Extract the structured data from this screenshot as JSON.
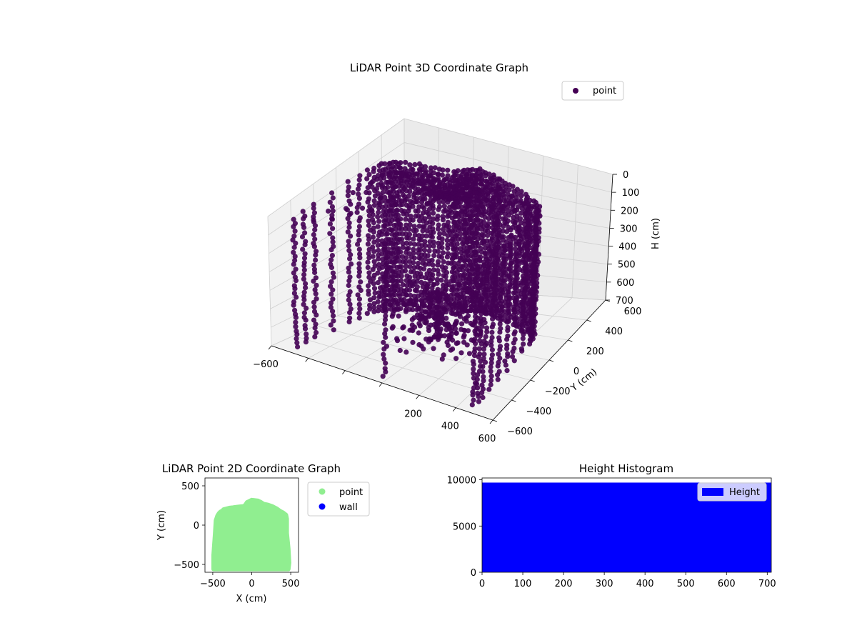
{
  "chart_data": [
    {
      "type": "scatter",
      "projection": "3d",
      "title": "LiDAR Point 3D Coordinate Graph",
      "xlabel": "",
      "ylabel": "Y (cm)",
      "zlabel": "H (cm)",
      "xlim": [
        -600,
        600
      ],
      "ylim": [
        -600,
        600
      ],
      "zlim": [
        700,
        0
      ],
      "z_inverted": true,
      "xticks": [
        "−600",
        "",
        "",
        "",
        "200",
        "400",
        "600"
      ],
      "yticks": [
        "−600",
        "−400",
        "−200",
        "0",
        "200",
        "400",
        "600"
      ],
      "zticks": [
        "0",
        "100",
        "200",
        "300",
        "400",
        "500",
        "600",
        "700"
      ],
      "grid": true,
      "legend": {
        "placement": "top-right",
        "entries": [
          "point"
        ]
      },
      "series": [
        {
          "name": "point",
          "color": "#440154",
          "description_of_shape": "dense point cloud of a room scanned from the center; x from about −500 to 500, y from about −550 to 320, heights 0 to 700"
        }
      ]
    },
    {
      "type": "scatter",
      "title": "LiDAR Point 2D Coordinate Graph",
      "xlabel": "X (cm)",
      "ylabel": "Y (cm)",
      "xlim": [
        -600,
        600
      ],
      "ylim": [
        -600,
        600
      ],
      "xticks": [
        "−500",
        "0",
        "500"
      ],
      "yticks": [
        "−500",
        "0",
        "500"
      ],
      "legend": {
        "placement": "outside-right",
        "entries": [
          "point",
          "wall"
        ]
      },
      "series": [
        {
          "name": "point",
          "color": "#90ee90",
          "outline": [
            [
              -490,
              -560
            ],
            [
              -490,
              -380
            ],
            [
              -470,
              -100
            ],
            [
              -460,
              60
            ],
            [
              -440,
              120
            ],
            [
              -420,
              150
            ],
            [
              -400,
              170
            ],
            [
              -380,
              180
            ],
            [
              -360,
              200
            ],
            [
              -320,
              210
            ],
            [
              -280,
              220
            ],
            [
              -240,
              225
            ],
            [
              -200,
              230
            ],
            [
              -150,
              235
            ],
            [
              -100,
              240
            ],
            [
              -80,
              260
            ],
            [
              -60,
              290
            ],
            [
              -40,
              300
            ],
            [
              -20,
              310
            ],
            [
              0,
              320
            ],
            [
              40,
              315
            ],
            [
              80,
              310
            ],
            [
              120,
              290
            ],
            [
              150,
              270
            ],
            [
              200,
              260
            ],
            [
              260,
              240
            ],
            [
              320,
              210
            ],
            [
              360,
              180
            ],
            [
              400,
              160
            ],
            [
              440,
              130
            ],
            [
              450,
              80
            ],
            [
              450,
              -100
            ],
            [
              470,
              -300
            ],
            [
              480,
              -480
            ],
            [
              470,
              -560
            ]
          ]
        },
        {
          "name": "wall",
          "color": "#0000ff",
          "points": []
        }
      ]
    },
    {
      "type": "bar",
      "subtype": "histogram",
      "title": "Height Histogram",
      "xlabel": "",
      "ylabel": "",
      "xlim": [
        0,
        710
      ],
      "ylim": [
        0,
        10200
      ],
      "xticks": [
        "0",
        "100",
        "200",
        "300",
        "400",
        "500",
        "600",
        "700"
      ],
      "yticks": [
        "0",
        "5000",
        "10000"
      ],
      "legend": {
        "placement": "top-right",
        "entries": [
          "Height"
        ]
      },
      "series": [
        {
          "name": "Height",
          "color": "#0000ff",
          "bins": [
            [
              0,
              710,
              9700
            ]
          ]
        }
      ]
    }
  ]
}
